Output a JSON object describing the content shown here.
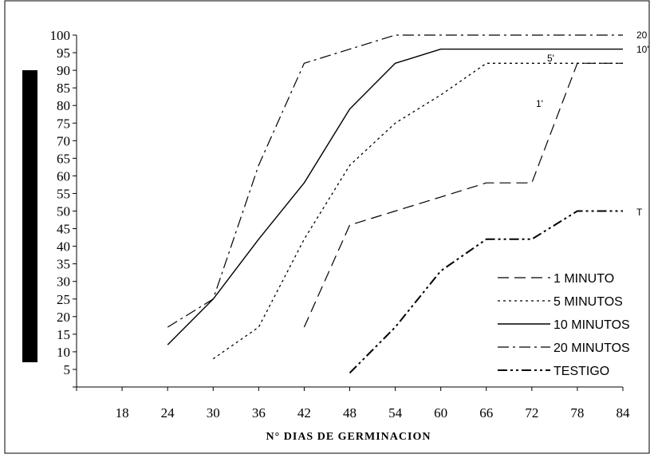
{
  "chart_data": {
    "type": "line",
    "title": "",
    "xlabel": "N° DIAS DE GERMINACION",
    "ylabel": "",
    "x_ticks": [
      12,
      18,
      24,
      30,
      36,
      42,
      48,
      54,
      60,
      66,
      72,
      78,
      84
    ],
    "x_tick_labels": [
      "",
      "18",
      "24",
      "30",
      "36",
      "42",
      "48",
      "54",
      "60",
      "66",
      "72",
      "78",
      "84"
    ],
    "y_ticks": [
      0,
      5,
      10,
      15,
      20,
      25,
      30,
      35,
      40,
      45,
      50,
      55,
      60,
      65,
      70,
      75,
      80,
      85,
      90,
      95,
      100
    ],
    "y_tick_labels": [
      "",
      "5",
      "10",
      "15",
      "20",
      "25",
      "30",
      "35",
      "40",
      "45",
      "50",
      "55",
      "60",
      "65",
      "70",
      "75",
      "80",
      "85",
      "90",
      "95",
      "100"
    ],
    "xlim": [
      12,
      84
    ],
    "ylim": [
      0,
      100
    ],
    "grid": false,
    "legend_position": "bottom-right",
    "series": [
      {
        "name": "1 MINUTO",
        "end_label": "1'",
        "dash": "long-dash",
        "x": [
          42,
          48,
          54,
          60,
          66,
          72,
          78,
          84
        ],
        "y": [
          17,
          46,
          50,
          54,
          58,
          58,
          92,
          92
        ]
      },
      {
        "name": "5 MINUTOS",
        "end_label": "5'",
        "dash": "dot",
        "x": [
          30,
          36,
          42,
          48,
          54,
          60,
          66,
          72,
          78,
          84
        ],
        "y": [
          8,
          17,
          42,
          63,
          75,
          83,
          92,
          92,
          92,
          92
        ]
      },
      {
        "name": "10 MINUTOS",
        "end_label": "10'",
        "dash": "solid",
        "x": [
          24,
          30,
          36,
          42,
          48,
          54,
          60,
          66,
          72,
          78,
          84
        ],
        "y": [
          12,
          25,
          42,
          58,
          79,
          92,
          96,
          96,
          96,
          96,
          96
        ]
      },
      {
        "name": "20 MINUTOS",
        "end_label": "20",
        "dash": "dash-dot",
        "x": [
          24,
          30,
          36,
          42,
          48,
          54,
          60,
          66,
          72,
          78,
          84
        ],
        "y": [
          17,
          25,
          63,
          92,
          96,
          100,
          100,
          100,
          100,
          100,
          100
        ]
      },
      {
        "name": "TESTIGO",
        "end_label": "T",
        "dash": "dash-dot-dot",
        "x": [
          48,
          54,
          60,
          66,
          72,
          78,
          84
        ],
        "y": [
          4,
          17,
          33,
          42,
          42,
          50,
          50
        ]
      }
    ]
  }
}
